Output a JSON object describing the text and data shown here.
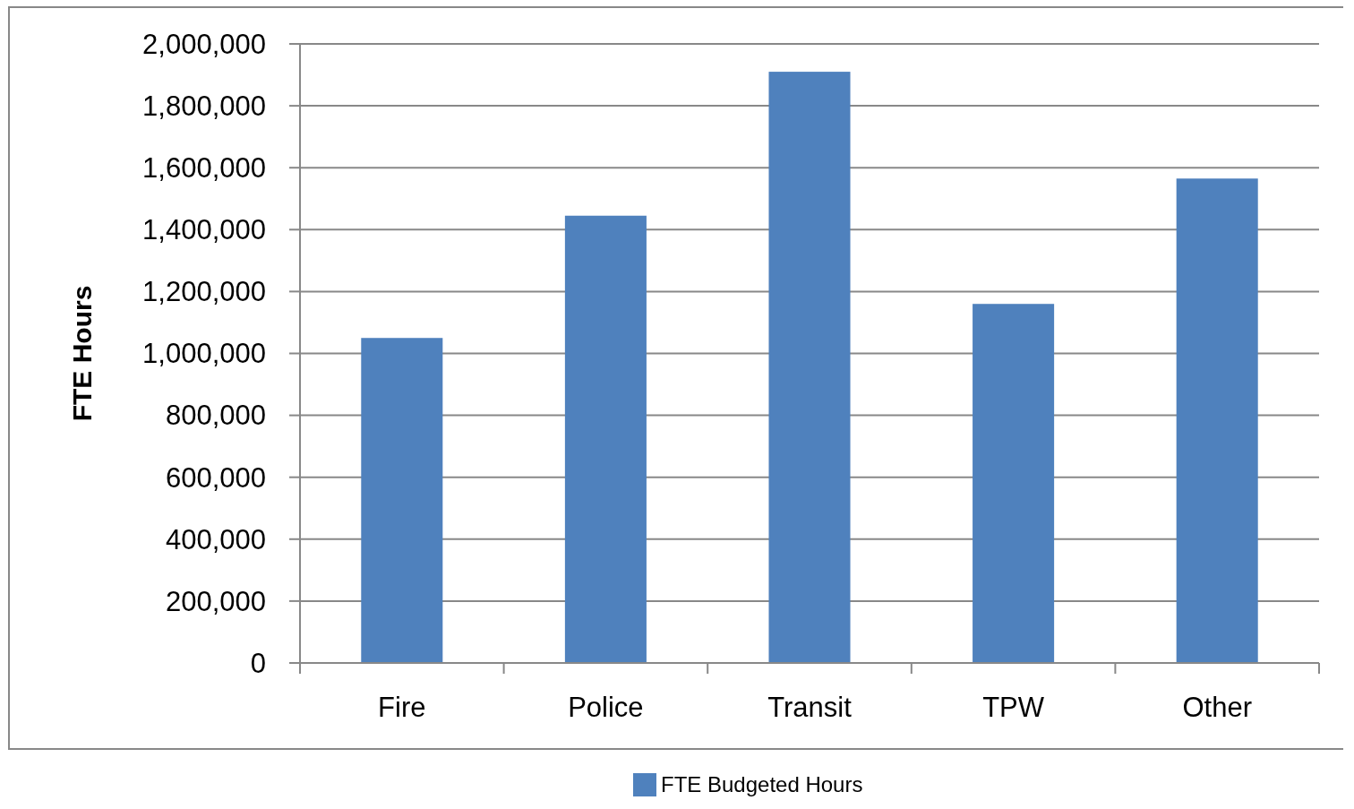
{
  "chart_data": {
    "type": "bar",
    "ylabel": "FTE Hours",
    "categories": [
      "Fire",
      "Police",
      "Transit",
      "TPW",
      "Other"
    ],
    "series": [
      {
        "name": "FTE Budgeted Hours",
        "color": "#4f81bd",
        "values": [
          1050000,
          1445000,
          1910000,
          1160000,
          1565000
        ]
      }
    ],
    "ylim": [
      0,
      2000000
    ],
    "yticks": [
      {
        "value": 0,
        "label": "0"
      },
      {
        "value": 200000,
        "label": "200,000"
      },
      {
        "value": 400000,
        "label": "400,000"
      },
      {
        "value": 600000,
        "label": "600,000"
      },
      {
        "value": 800000,
        "label": "800,000"
      },
      {
        "value": 1000000,
        "label": "1,000,000"
      },
      {
        "value": 1200000,
        "label": "1,200,000"
      },
      {
        "value": 1400000,
        "label": "1,400,000"
      },
      {
        "value": 1600000,
        "label": "1,600,000"
      },
      {
        "value": 1800000,
        "label": "1,800,000"
      },
      {
        "value": 2000000,
        "label": "2,000,000"
      }
    ],
    "grid": "y",
    "legend": "bottom"
  }
}
